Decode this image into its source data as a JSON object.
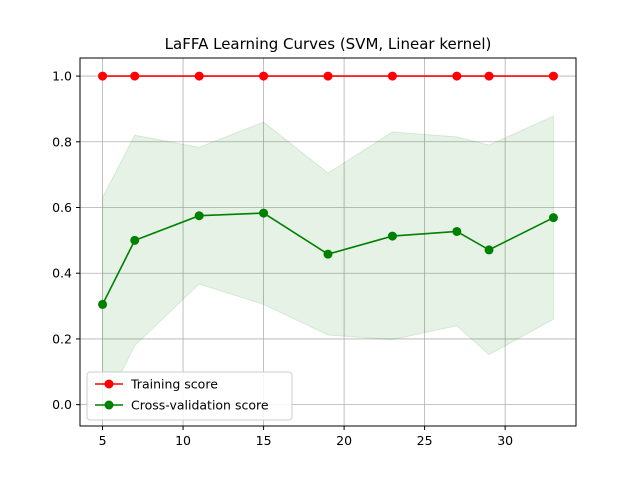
{
  "chart_data": {
    "type": "line",
    "title": "LaFFA Learning Curves (SVM, Linear kernel)",
    "xlabel": "",
    "ylabel": "",
    "xlim": [
      3.6,
      34.4
    ],
    "ylim": [
      -0.065,
      1.055
    ],
    "grid": true,
    "x_ticks": [
      5,
      10,
      15,
      20,
      25,
      30
    ],
    "y_ticks": [
      0.0,
      0.2,
      0.4,
      0.6,
      0.8,
      1.0
    ],
    "x_tick_labels": [
      "5",
      "10",
      "15",
      "20",
      "25",
      "30"
    ],
    "y_tick_labels": [
      "0.0",
      "0.2",
      "0.4",
      "0.6",
      "0.8",
      "1.0"
    ],
    "legend_position": "lower-left",
    "x": [
      5,
      7,
      11,
      15,
      19,
      23,
      27,
      29,
      33
    ],
    "series": [
      {
        "name": "Training score",
        "color": "#ff0000",
        "marker": "circle",
        "values": [
          1.0,
          1.0,
          1.0,
          1.0,
          1.0,
          1.0,
          1.0,
          1.0,
          1.0
        ],
        "band_lower": [
          1.0,
          1.0,
          1.0,
          1.0,
          1.0,
          1.0,
          1.0,
          1.0,
          1.0
        ],
        "band_upper": [
          1.0,
          1.0,
          1.0,
          1.0,
          1.0,
          1.0,
          1.0,
          1.0,
          1.0
        ]
      },
      {
        "name": "Cross-validation score",
        "color": "#008000",
        "band_color": "#008000",
        "marker": "circle",
        "values": [
          0.305,
          0.5,
          0.575,
          0.583,
          0.458,
          0.513,
          0.527,
          0.471,
          0.569
        ],
        "band_lower": [
          -0.02,
          0.18,
          0.367,
          0.305,
          0.212,
          0.198,
          0.24,
          0.152,
          0.26
        ],
        "band_upper": [
          0.63,
          0.82,
          0.783,
          0.86,
          0.705,
          0.83,
          0.815,
          0.79,
          0.878
        ]
      }
    ]
  }
}
